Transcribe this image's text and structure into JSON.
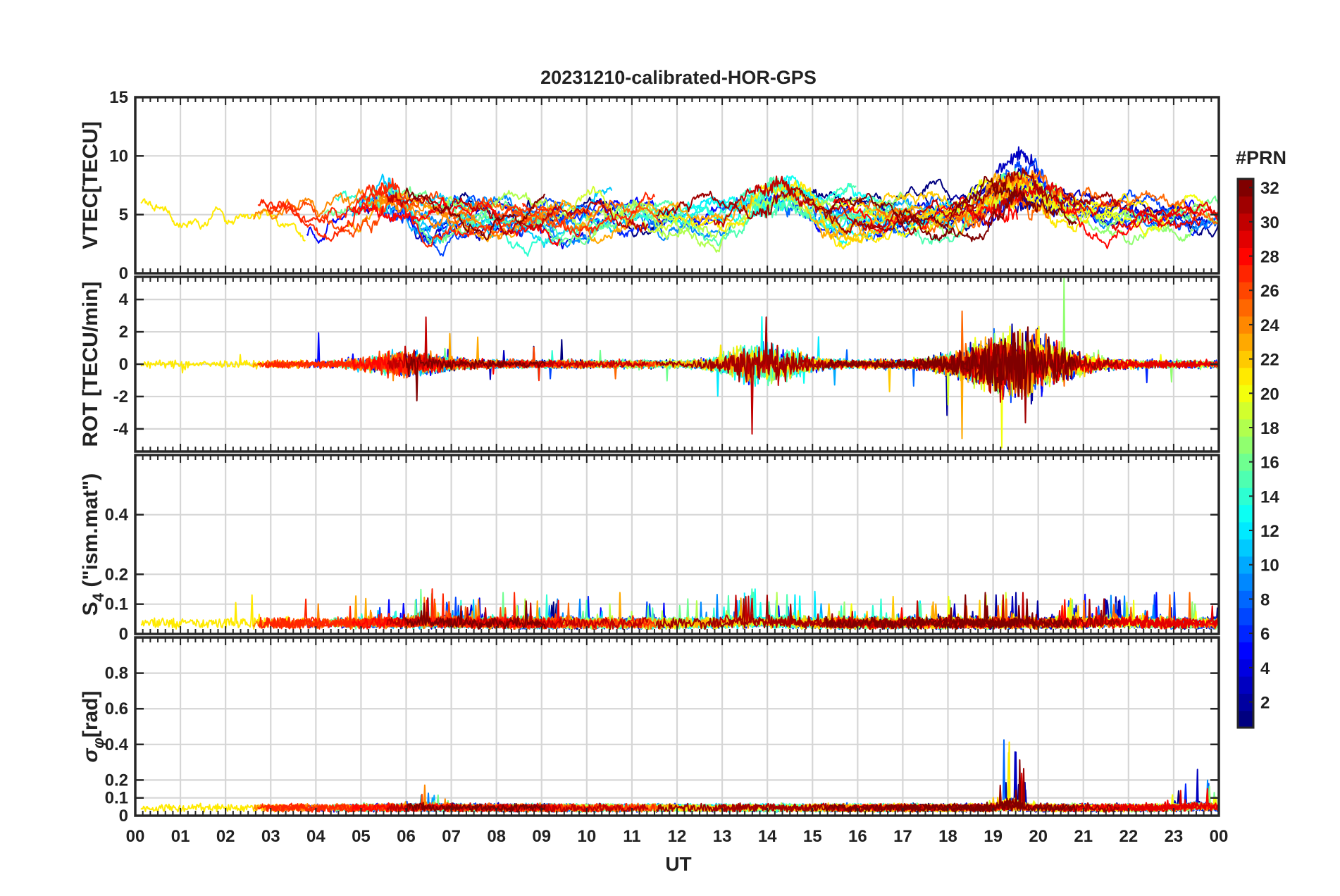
{
  "chart_data": {
    "type": "line",
    "title": "20231210-calibrated-HOR-GPS",
    "xlabel": "UT",
    "x_range_hours": [
      0,
      24
    ],
    "x_ticks": [
      "00",
      "01",
      "02",
      "03",
      "04",
      "05",
      "06",
      "07",
      "08",
      "09",
      "10",
      "11",
      "12",
      "13",
      "14",
      "15",
      "16",
      "17",
      "18",
      "19",
      "20",
      "21",
      "22",
      "23",
      "00"
    ],
    "grid": true,
    "colorbar": {
      "label": "#PRN",
      "range": [
        1,
        32
      ],
      "ticks": [
        "2",
        "4",
        "6",
        "8",
        "10",
        "12",
        "14",
        "16",
        "18",
        "20",
        "22",
        "24",
        "26",
        "28",
        "30",
        "32"
      ],
      "colormap": "jet",
      "placement": "right"
    },
    "panels": [
      {
        "id": "vtec",
        "ylabel": "VTEC[TECU]",
        "ylim": [
          0,
          15
        ],
        "yticks": [
          "0",
          "5",
          "10",
          "15"
        ],
        "ytick_values": [
          0,
          5,
          10,
          15
        ],
        "baseline": 5.0,
        "noise": 0.5,
        "rough": 0.03,
        "events": [
          [
            5.5,
            2.5,
            0.6
          ],
          [
            14.2,
            2.8,
            0.8
          ],
          [
            19.6,
            3.6,
            1.0
          ]
        ]
      },
      {
        "id": "rot",
        "ylabel": "ROT [TECU/min]",
        "ylim": [
          -5.4,
          5.4
        ],
        "yticks": [
          "-4",
          "-2",
          "0",
          "2",
          "4"
        ],
        "ytick_values": [
          -4,
          -2,
          0,
          2,
          4
        ],
        "baseline": 0.0,
        "noise": 0.22,
        "rough": 1.0,
        "events": [
          [
            6.0,
            1.0,
            0.9
          ],
          [
            13.9,
            1.8,
            0.9
          ],
          [
            19.5,
            3.0,
            1.3
          ]
        ]
      },
      {
        "id": "s4",
        "ylabel": "S4 (\"ism.mat\")",
        "ylabel_main": "S",
        "ylabel_sub": "4",
        "ylabel_rest": " (\"ism.mat\")",
        "ylim": [
          0,
          0.6
        ],
        "yticks": [
          "0",
          "0.1",
          "0.2",
          "0.4"
        ],
        "ytick_values": [
          0,
          0.1,
          0.2,
          0.4
        ],
        "baseline": 0.03,
        "noise": 0.015,
        "rough": 0.35,
        "events": [
          [
            6.5,
            0.05,
            1.2
          ],
          [
            13.8,
            0.06,
            0.9
          ],
          [
            21.6,
            0.05,
            0.8
          ]
        ]
      },
      {
        "id": "sigma",
        "ylabel": "σφ[rad]",
        "ylabel_main": "σ",
        "ylabel_sub": "φ",
        "ylabel_rest": "[rad]",
        "ylim": [
          0,
          1.0
        ],
        "yticks": [
          "0",
          "0.1",
          "0.2",
          "0.4",
          "0.6",
          "0.8"
        ],
        "ytick_values": [
          0,
          0.1,
          0.2,
          0.4,
          0.6,
          0.8
        ],
        "baseline": 0.04,
        "noise": 0.01,
        "rough": 0.4,
        "events": [
          [
            6.5,
            0.06,
            0.4
          ],
          [
            19.4,
            0.25,
            0.3
          ],
          [
            23.5,
            0.1,
            0.5
          ]
        ]
      }
    ],
    "series_count": 32
  },
  "colors": {
    "axis": "#262626",
    "grid": "#d6d6d6",
    "background": "#ffffff"
  }
}
